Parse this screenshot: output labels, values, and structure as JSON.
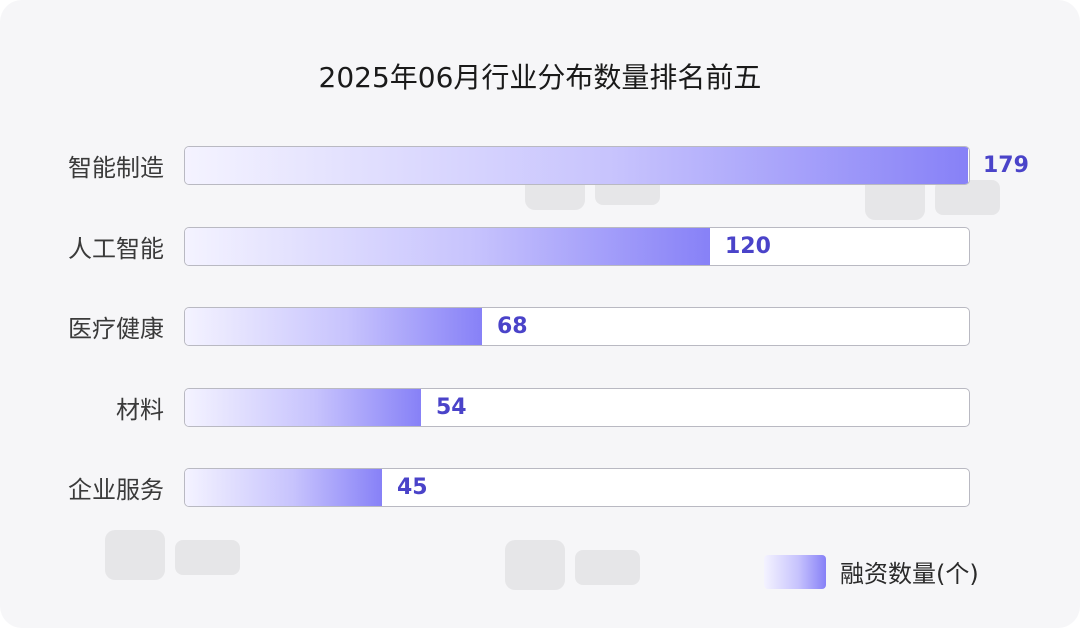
{
  "chart_data": {
    "type": "bar",
    "orientation": "horizontal",
    "title": "2025年06月行业分布数量排名前五",
    "categories": [
      "智能制造",
      "人工智能",
      "医疗健康",
      "材料",
      "企业服务"
    ],
    "series": [
      {
        "name": "融资数量(个)",
        "values": [
          179,
          120,
          68,
          54,
          45
        ]
      }
    ],
    "xlim": [
      0,
      179
    ],
    "grid": false,
    "legend_position": "bottom-right"
  },
  "colors": {
    "bar_gradient_start": "#f4f3ff",
    "bar_gradient_end": "#8781f7",
    "value_label": "#4a43c9",
    "track_border": "#b9b9c2"
  }
}
